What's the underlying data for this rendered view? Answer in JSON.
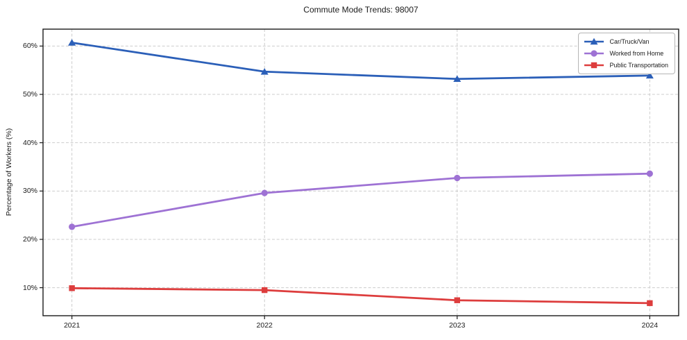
{
  "chart_data": {
    "type": "line",
    "title": "Commute Mode Trends: 98007",
    "xlabel": "",
    "ylabel": "Percentage of Workers (%)",
    "x": [
      2021,
      2022,
      2023,
      2024
    ],
    "categories": [
      "2021",
      "2022",
      "2023",
      "2024"
    ],
    "series": [
      {
        "name": "Car/Truck/Van",
        "color": "#2b5fb8",
        "marker": "triangle",
        "values": [
          60.7,
          54.7,
          53.2,
          53.9
        ]
      },
      {
        "name": "Worked from Home",
        "color": "#9e72d4",
        "marker": "circle",
        "values": [
          22.6,
          29.6,
          32.7,
          33.6
        ]
      },
      {
        "name": "Public Transportation",
        "color": "#dd3d3d",
        "marker": "square",
        "values": [
          9.9,
          9.5,
          7.4,
          6.8
        ]
      }
    ],
    "xlim": [
      2020.85,
      2024.15
    ],
    "ylim": [
      4.2,
      63.5
    ],
    "yticks": [
      10,
      20,
      30,
      40,
      50,
      60
    ],
    "ytick_labels": [
      "10%",
      "20%",
      "30%",
      "40%",
      "50%",
      "60%"
    ],
    "grid": true,
    "grid_style": "dashed",
    "grid_color": "#cccccc",
    "legend_position": "upper right",
    "spine_color": "#1a1a1a",
    "background": "#ffffff"
  }
}
